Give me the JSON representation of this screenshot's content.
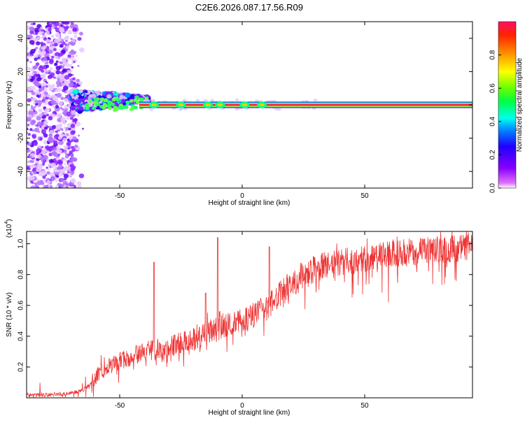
{
  "page_title": "C2E6.2026.087.17.56.R09",
  "chart_data": [
    {
      "type": "heatmap",
      "title": "",
      "xlabel": "Height of straight line (km)",
      "ylabel": "Frequency (Hz)",
      "xlim": [
        -88,
        94
      ],
      "ylim": [
        -50,
        50
      ],
      "xticks": [
        -50,
        0,
        50
      ],
      "yticks": [
        -40,
        -20,
        0,
        20,
        40
      ],
      "colorbar": {
        "label": "Normalized spectral amplitude",
        "range": [
          0.0,
          1.0
        ],
        "ticks": [
          "0.0",
          "0.2",
          "0.4",
          "0.6",
          "0.8"
        ],
        "tick_values": [
          0.0,
          0.2,
          0.4,
          0.6,
          0.8
        ]
      },
      "features": [
        {
          "name": "carrier-line",
          "x_range": [
            -40,
            94
          ],
          "frequency_hz": 0,
          "amplitude": 1.0
        },
        {
          "name": "broadened-band",
          "x_range": [
            -70,
            -40
          ],
          "frequency_hz": [
            -6,
            6
          ],
          "amplitude": 0.35
        },
        {
          "name": "scintillation-noise",
          "x_range": [
            -88,
            -70
          ],
          "frequency_hz": [
            -50,
            50
          ],
          "amplitude": 0.15
        }
      ]
    },
    {
      "type": "line",
      "title": "",
      "xlabel": "Height of straight line (km)",
      "ylabel": "SNR (10 * v/v)",
      "yscale_label": "(x10",
      "yscale_exp": "4",
      "yscale_suffix": ")",
      "xlim": [
        -88,
        94
      ],
      "ylim": [
        0,
        1.08
      ],
      "xticks": [
        -50,
        0,
        50
      ],
      "yticks": [
        "0.2",
        "0.4",
        "0.6",
        "0.8",
        "1.0"
      ],
      "ytick_values": [
        0.2,
        0.4,
        0.6,
        0.8,
        1.0
      ],
      "line_color": "#ee3333",
      "series": [
        {
          "name": "SNR",
          "x": [
            -88,
            -80,
            -70,
            -65,
            -62,
            -60,
            -58,
            -55,
            -50,
            -45,
            -40,
            -35,
            -30,
            -25,
            -20,
            -15,
            -10,
            -5,
            0,
            5,
            10,
            15,
            20,
            25,
            30,
            40,
            50,
            60,
            70,
            80,
            94
          ],
          "y": [
            0.02,
            0.02,
            0.03,
            0.05,
            0.09,
            0.13,
            0.16,
            0.2,
            0.24,
            0.27,
            0.3,
            0.32,
            0.33,
            0.36,
            0.38,
            0.42,
            0.45,
            0.47,
            0.5,
            0.53,
            0.58,
            0.66,
            0.74,
            0.8,
            0.84,
            0.88,
            0.9,
            0.93,
            0.95,
            0.96,
            0.98
          ]
        }
      ],
      "spikes": [
        {
          "x": -36,
          "y": 0.88
        },
        {
          "x": -10,
          "y": 1.04
        },
        {
          "x": 11,
          "y": 0.98
        },
        {
          "x": -15,
          "y": 0.68
        }
      ]
    }
  ]
}
